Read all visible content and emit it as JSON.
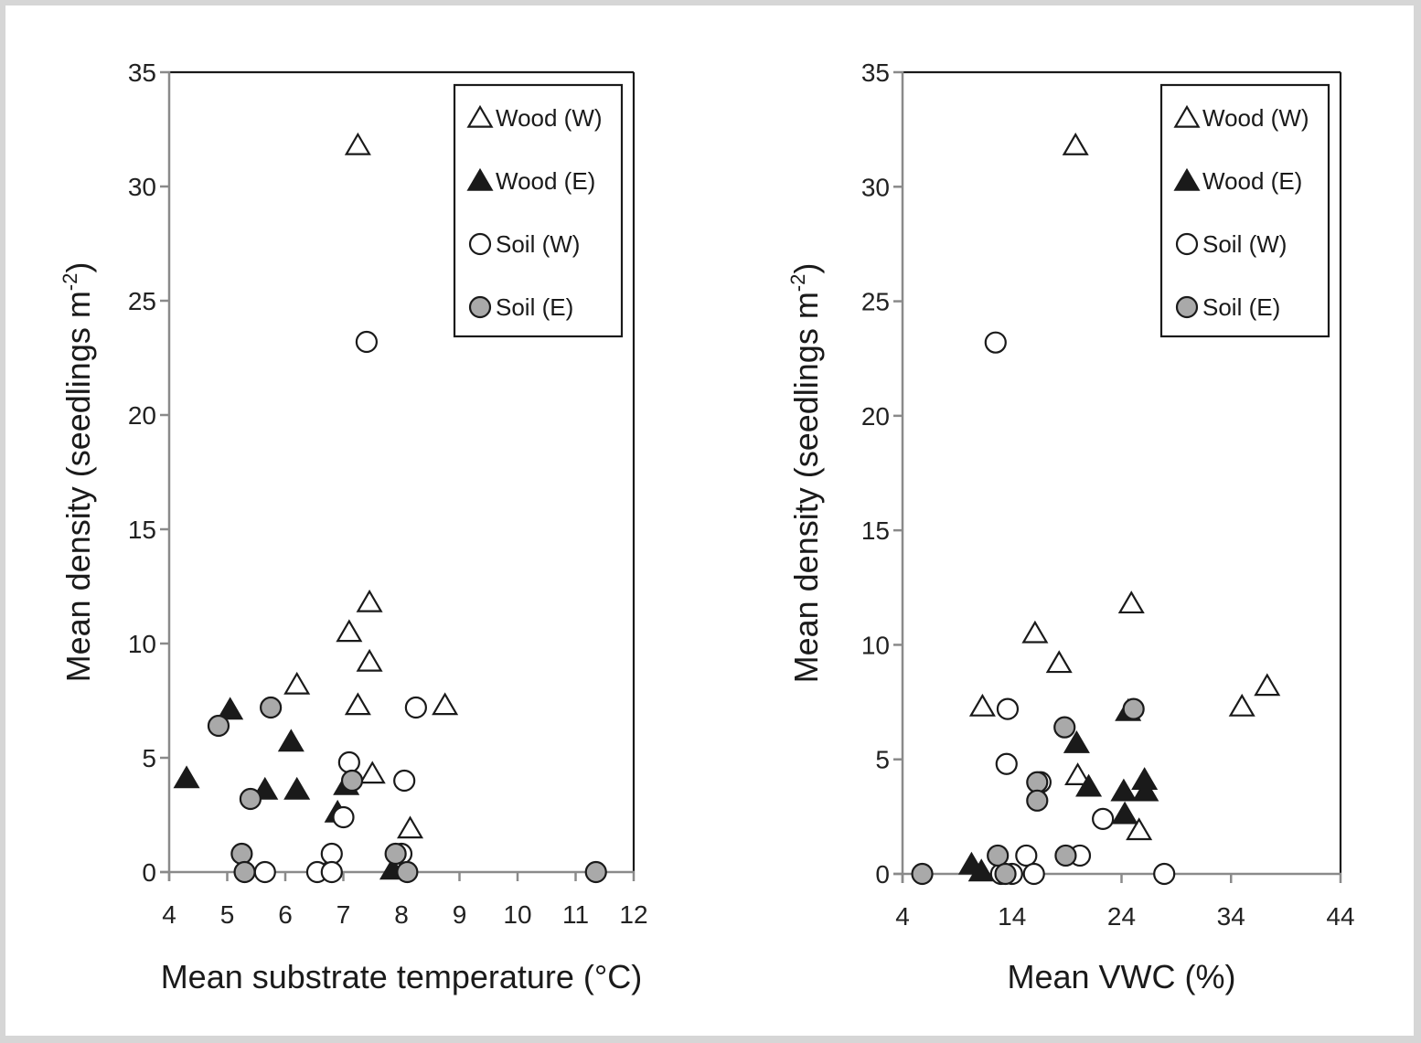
{
  "chart_data": [
    {
      "type": "scatter",
      "xlabel": "Mean substrate temperature (°C)",
      "ylabel": "Mean density (seedlings  m",
      "ylabel_sup": "-2",
      "ylabel_end": ")",
      "xlim": [
        4,
        12
      ],
      "ylim": [
        0,
        35
      ],
      "xticks": [
        "4",
        "5",
        "6",
        "7",
        "8",
        "9",
        "10",
        "11",
        "12"
      ],
      "xtick_values": [
        4,
        5,
        6,
        7,
        8,
        9,
        10,
        11,
        12
      ],
      "yticks": [
        "0",
        "5",
        "10",
        "15",
        "20",
        "25",
        "30",
        "35"
      ],
      "ytick_values": [
        0,
        5,
        10,
        15,
        20,
        25,
        30,
        35
      ],
      "grid": false,
      "legend_position": "top-right",
      "series": [
        {
          "name": "Wood (W)",
          "marker": "triangle-open",
          "points": [
            [
              7.25,
              31.8
            ],
            [
              7.45,
              11.8
            ],
            [
              7.1,
              10.5
            ],
            [
              7.45,
              9.2
            ],
            [
              6.2,
              8.2
            ],
            [
              7.25,
              7.3
            ],
            [
              8.75,
              7.3
            ],
            [
              7.5,
              4.3
            ],
            [
              8.15,
              1.9
            ]
          ]
        },
        {
          "name": "Wood (E)",
          "marker": "triangle-filled",
          "points": [
            [
              5.05,
              7.1
            ],
            [
              4.3,
              4.1
            ],
            [
              6.1,
              5.7
            ],
            [
              5.65,
              3.6
            ],
            [
              6.2,
              3.6
            ],
            [
              7.05,
              3.8
            ],
            [
              6.9,
              2.6
            ],
            [
              6.75,
              0.2
            ],
            [
              7.85,
              0.1
            ]
          ]
        },
        {
          "name": "Soil (W)",
          "marker": "circle-open",
          "points": [
            [
              7.4,
              23.2
            ],
            [
              8.25,
              7.2
            ],
            [
              7.1,
              4.8
            ],
            [
              8.05,
              4.0
            ],
            [
              7.0,
              2.4
            ],
            [
              6.8,
              0.8
            ],
            [
              8.0,
              0.8
            ],
            [
              5.65,
              0.0
            ],
            [
              6.55,
              0.0
            ],
            [
              6.8,
              0.0
            ]
          ]
        },
        {
          "name": "Soil (E)",
          "marker": "circle-gray",
          "points": [
            [
              5.75,
              7.2
            ],
            [
              4.85,
              6.4
            ],
            [
              7.15,
              4.0
            ],
            [
              5.4,
              3.2
            ],
            [
              5.25,
              0.8
            ],
            [
              7.9,
              0.8
            ],
            [
              5.3,
              0.0
            ],
            [
              8.1,
              0.0
            ],
            [
              11.35,
              0.0
            ]
          ]
        }
      ]
    },
    {
      "type": "scatter",
      "xlabel": "Mean VWC (%)",
      "ylabel": "Mean density (seedlings  m",
      "ylabel_sup": "-2",
      "ylabel_end": ")",
      "xlim": [
        4,
        44
      ],
      "ylim": [
        0,
        35
      ],
      "xticks": [
        "4",
        "14",
        "24",
        "34",
        "44"
      ],
      "xtick_values": [
        4,
        14,
        24,
        34,
        44
      ],
      "yticks": [
        "0",
        "5",
        "10",
        "15",
        "20",
        "25",
        "30",
        "35"
      ],
      "ytick_values": [
        0,
        5,
        10,
        15,
        20,
        25,
        30,
        35
      ],
      "grid": false,
      "legend_position": "top-right",
      "series": [
        {
          "name": "Wood (W)",
          "marker": "triangle-open",
          "points": [
            [
              19.8,
              31.8
            ],
            [
              24.9,
              11.8
            ],
            [
              16.1,
              10.5
            ],
            [
              18.3,
              9.2
            ],
            [
              37.3,
              8.2
            ],
            [
              11.3,
              7.3
            ],
            [
              35.0,
              7.3
            ],
            [
              20.0,
              4.3
            ],
            [
              25.6,
              1.9
            ]
          ]
        },
        {
          "name": "Wood (E)",
          "marker": "triangle-filled",
          "points": [
            [
              24.6,
              7.1
            ],
            [
              19.9,
              5.7
            ],
            [
              26.1,
              4.1
            ],
            [
              21.0,
              3.8
            ],
            [
              24.2,
              3.6
            ],
            [
              26.2,
              3.6
            ],
            [
              24.3,
              2.6
            ],
            [
              10.3,
              0.4
            ],
            [
              11.2,
              0.1
            ]
          ]
        },
        {
          "name": "Soil (W)",
          "marker": "circle-open",
          "points": [
            [
              12.5,
              23.2
            ],
            [
              13.6,
              7.2
            ],
            [
              13.5,
              4.8
            ],
            [
              16.6,
              4.0
            ],
            [
              22.3,
              2.4
            ],
            [
              15.3,
              0.8
            ],
            [
              20.2,
              0.8
            ],
            [
              13.0,
              0.0
            ],
            [
              14.0,
              0.0
            ],
            [
              16.0,
              0.0
            ],
            [
              27.9,
              0.0
            ]
          ]
        },
        {
          "name": "Soil (E)",
          "marker": "circle-gray",
          "points": [
            [
              25.1,
              7.2
            ],
            [
              18.8,
              6.4
            ],
            [
              16.3,
              4.0
            ],
            [
              16.3,
              3.2
            ],
            [
              12.7,
              0.8
            ],
            [
              18.9,
              0.8
            ],
            [
              5.8,
              0.0
            ],
            [
              13.4,
              0.0
            ]
          ]
        }
      ]
    }
  ]
}
